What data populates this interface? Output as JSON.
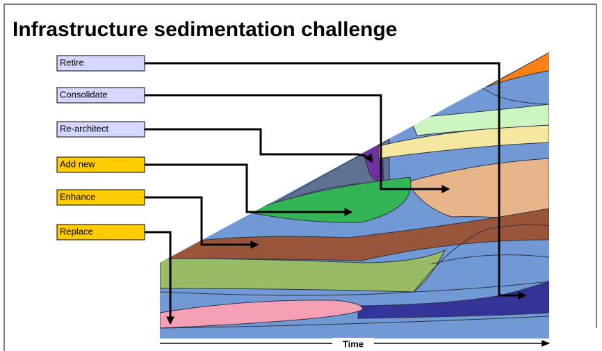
{
  "header": {
    "title": "Infrastructure sedimentation challenge"
  },
  "labels": [
    "Retire",
    "Consolidate",
    "Re-architect",
    "Add new",
    "Enhance",
    "Replace"
  ],
  "axis": {
    "label": "Time"
  }
}
